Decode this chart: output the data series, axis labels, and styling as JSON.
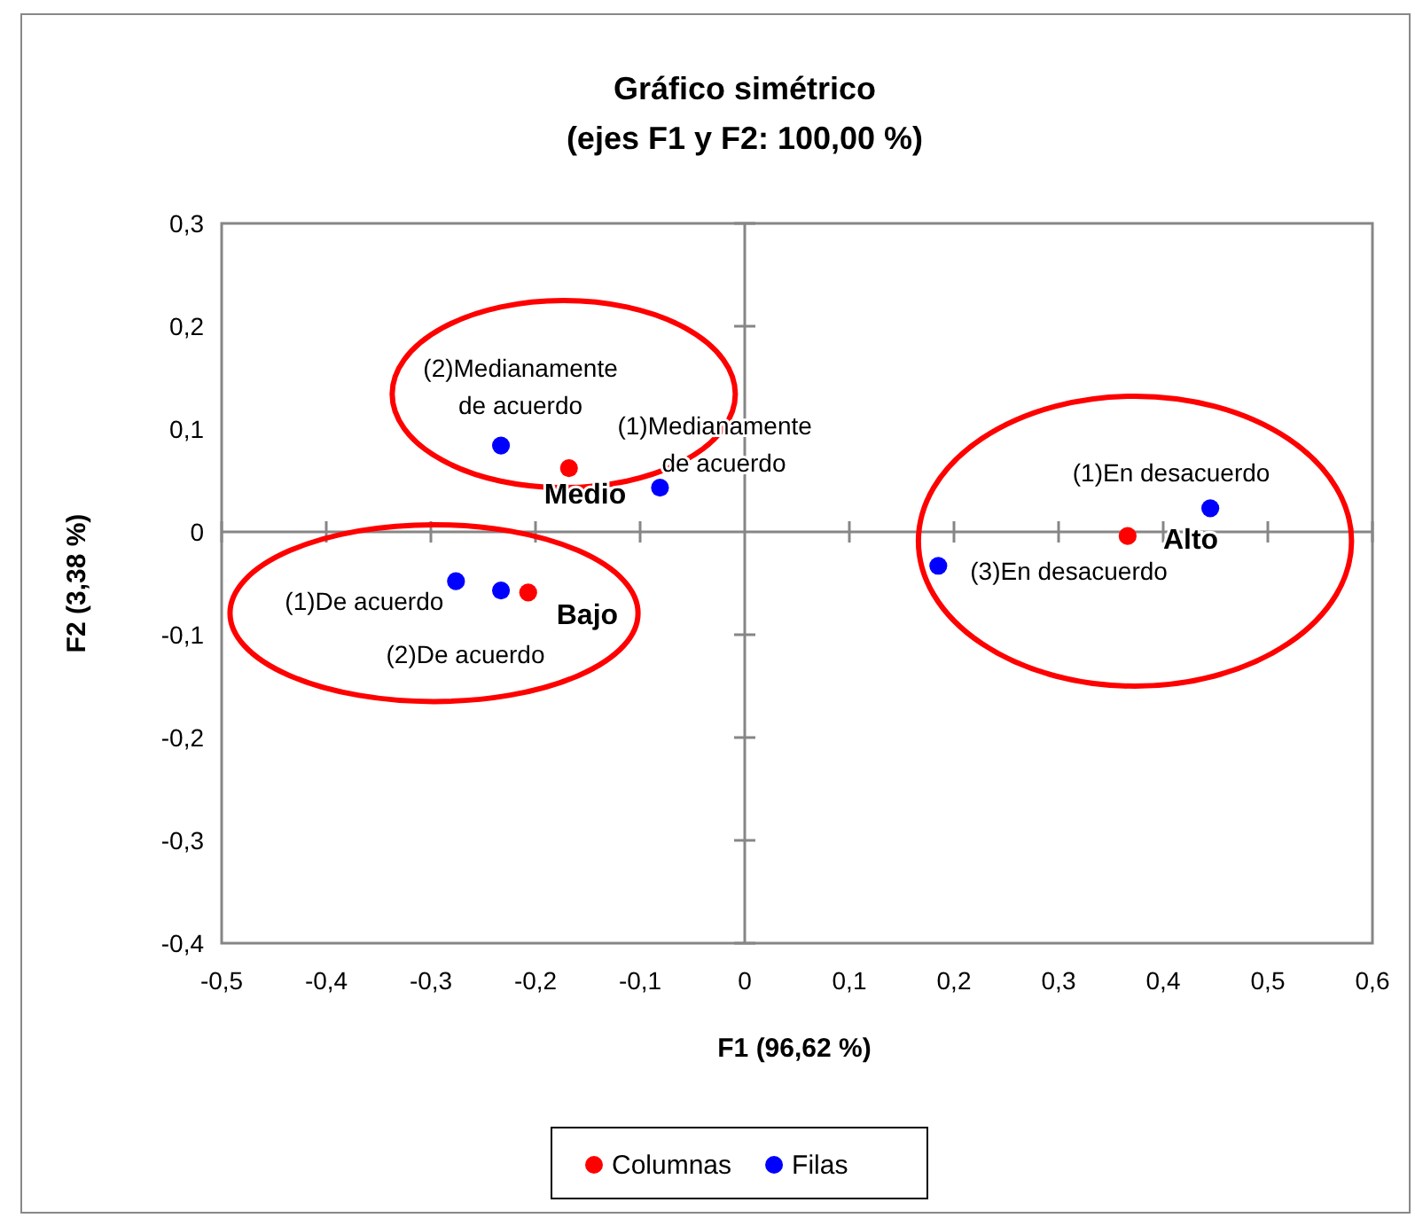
{
  "chart_data": {
    "type": "scatter",
    "title": "Gráfico simétrico",
    "subtitle": "(ejes F1 y F2: 100,00 %)",
    "xlabel": "F1 (96,62 %)",
    "ylabel": "F2 (3,38 %)",
    "xlim": [
      -0.5,
      0.6
    ],
    "xticks": [
      {
        "value": -0.5,
        "label": "-0,5"
      },
      {
        "value": -0.4,
        "label": "-0,4"
      },
      {
        "value": -0.3,
        "label": "-0,3"
      },
      {
        "value": -0.2,
        "label": "-0,2"
      },
      {
        "value": -0.1,
        "label": "-0,1"
      },
      0,
      {
        "value": 0.1,
        "label": "0,1"
      },
      {
        "value": 0.2,
        "label": "0,2"
      },
      {
        "value": 0.3,
        "label": "0,3"
      },
      {
        "value": 0.4,
        "label": "0,4"
      },
      {
        "value": 0.5,
        "label": "0,5"
      },
      {
        "value": 0.6,
        "label": "0,6"
      }
    ],
    "ylim": [
      -0.4,
      0.3
    ],
    "yticks": [
      {
        "value": -0.4,
        "label": "-0,4"
      },
      {
        "value": -0.3,
        "label": "-0,3"
      },
      {
        "value": -0.2,
        "label": "-0,2"
      },
      {
        "value": -0.1,
        "label": "-0,1"
      },
      0,
      {
        "value": 0.1,
        "label": "0,1"
      },
      {
        "value": 0.2,
        "label": "0,2"
      },
      {
        "value": 0.3,
        "label": "0,3"
      }
    ],
    "marker": "circle",
    "legend": "bottom",
    "series": [
      {
        "name": "Columnas",
        "color": "#ff0000",
        "x": [
          -0.168,
          -0.207,
          0.366
        ],
        "values": [
          0.062,
          -0.059,
          -0.004
        ]
      },
      {
        "name": "Filas",
        "color": "#0000ff",
        "x": [
          -0.081,
          -0.233,
          -0.276,
          -0.233,
          0.445,
          0.185
        ],
        "values": [
          0.043,
          0.084,
          -0.048,
          -0.057,
          0.023,
          -0.033
        ]
      }
    ],
    "annotations": [
      {
        "text": "Medio",
        "x": -0.168,
        "y": 0.062
      },
      {
        "text": "Bajo",
        "x": -0.207,
        "y": -0.059
      },
      {
        "text": "Alto",
        "x": 0.366,
        "y": -0.004
      },
      {
        "text": "(1)Medianamente\nde acuerdo",
        "x": -0.081,
        "y": 0.043
      },
      {
        "text": "(2)Medianamente\nde acuerdo",
        "x": -0.233,
        "y": 0.084
      },
      {
        "text": "(1)De acuerdo",
        "x": -0.276,
        "y": -0.048
      },
      {
        "text": "(2)De acuerdo",
        "x": -0.233,
        "y": -0.057
      },
      {
        "text": "(1)En desacuerdo",
        "x": 0.445,
        "y": 0.023
      },
      {
        "text": "(3)En desacuerdo",
        "x": 0.185,
        "y": -0.033
      }
    ]
  }
}
